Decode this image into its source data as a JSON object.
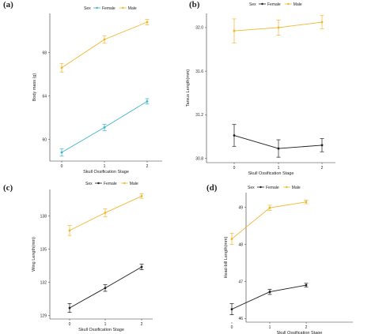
{
  "colors": {
    "female_a": "#3db3c9",
    "female_other": "#1a1a1a",
    "male": "#f0b62c"
  },
  "chart_data": [
    {
      "panel": "(a)",
      "type": "line",
      "legend_title": "Sex",
      "xlabel": "Skull Ossification Stage",
      "ylabel": "Body mass (g)",
      "x": [
        0,
        1,
        2
      ],
      "xticks": [
        "0",
        "1",
        "2"
      ],
      "yticks": [
        "60",
        "64",
        "68"
      ],
      "ylim": [
        58.0,
        71.6
      ],
      "series": [
        {
          "name": "Female",
          "color_key": "female_a",
          "values": [
            58.8,
            61.1,
            63.5
          ],
          "errors": [
            0.35,
            0.3,
            0.25
          ]
        },
        {
          "name": "Male",
          "color_key": "male",
          "values": [
            66.6,
            69.2,
            70.8
          ],
          "errors": [
            0.4,
            0.35,
            0.25
          ]
        }
      ]
    },
    {
      "panel": "(b)",
      "type": "line",
      "legend_title": "Sex",
      "xlabel": "Skull Ossification Stage",
      "ylabel": "Tarsus Length(mm)",
      "x": [
        0,
        1,
        2
      ],
      "xticks": [
        "0",
        "1",
        "2"
      ],
      "yticks": [
        "30.8",
        "31.2",
        "31.6",
        "32.0"
      ],
      "ylim": [
        30.76,
        32.13
      ],
      "series": [
        {
          "name": "Female",
          "color_key": "female_other",
          "values": [
            31.01,
            30.89,
            30.92
          ],
          "errors": [
            0.1,
            0.08,
            0.06
          ]
        },
        {
          "name": "Male",
          "color_key": "male",
          "values": [
            31.97,
            32.0,
            32.05
          ],
          "errors": [
            0.11,
            0.07,
            0.06
          ]
        }
      ]
    },
    {
      "panel": "(c)",
      "type": "line",
      "legend_title": "Sex",
      "xlabel": "Skull Ossification Stage",
      "ylabel": "Wing Length(mm)",
      "x": [
        0,
        1,
        2
      ],
      "xticks": [
        "0",
        "1",
        "2"
      ],
      "yticks": [
        "129",
        "132",
        "135",
        "138"
      ],
      "ylim": [
        128.7,
        140.4
      ],
      "series": [
        {
          "name": "Female",
          "color_key": "female_other",
          "values": [
            129.7,
            131.5,
            133.4
          ],
          "errors": [
            0.4,
            0.3,
            0.25
          ]
        },
        {
          "name": "Male",
          "color_key": "male",
          "values": [
            136.7,
            138.3,
            139.8
          ],
          "errors": [
            0.45,
            0.35,
            0.2
          ]
        }
      ]
    },
    {
      "panel": "(d)",
      "type": "line",
      "legend_title": "Sex",
      "xlabel": "Skull Ossification Stage",
      "ylabel": "Head-bill Length(mm)",
      "x": [
        0,
        1,
        2
      ],
      "xticks": [
        "0",
        "1",
        "2"
      ],
      "yticks": [
        "46",
        "47",
        "48",
        "49"
      ],
      "ylim": [
        45.9,
        49.4
      ],
      "series": [
        {
          "name": "Female",
          "color_key": "female_other",
          "values": [
            46.25,
            46.72,
            46.9
          ],
          "errors": [
            0.15,
            0.07,
            0.05
          ]
        },
        {
          "name": "Male",
          "color_key": "male",
          "values": [
            48.15,
            48.99,
            49.15
          ],
          "errors": [
            0.15,
            0.07,
            0.05
          ]
        }
      ]
    }
  ]
}
